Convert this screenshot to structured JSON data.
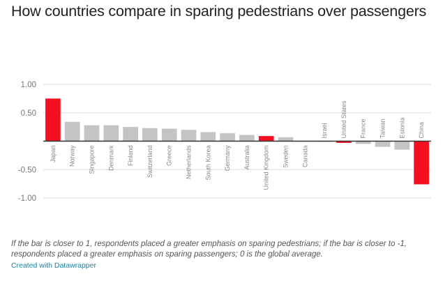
{
  "title": "How countries compare in sparing pedestrians over passengers",
  "notes": "If the bar is closer to 1, respondents placed a greater emphasis on sparing pedestrians; if the bar is closer to -1, respondents placed a greater emphasis on sparing passengers; 0 is the global average.",
  "credit": "Created with Datawrapper",
  "colors": {
    "highlight": "#f60f21",
    "default": "#c4c4c4",
    "grid": "#dddddd",
    "axis": "#333333",
    "credit": "#1d81a2"
  },
  "chart_data": {
    "type": "bar",
    "title": "How countries compare in sparing pedestrians over passengers",
    "xlabel": "",
    "ylabel": "",
    "ylim": [
      -1,
      1
    ],
    "yticks": [
      1.0,
      0.5,
      0,
      -0.5,
      -1.0
    ],
    "ytick_labels": [
      "1.00",
      "0.50",
      "",
      "-0.50",
      "-1.00"
    ],
    "grid": true,
    "categories": [
      "Japan",
      "Norway",
      "Singapore",
      "Denmark",
      "Finland",
      "Switzerland",
      "Greece",
      "Netherlands",
      "South Korea",
      "Germany",
      "Australia",
      "United Kingdom",
      "Sweden",
      "Canada",
      "Israel",
      "United States",
      "France",
      "Taiwan",
      "Estonia",
      "China"
    ],
    "values": [
      0.75,
      0.34,
      0.28,
      0.28,
      0.25,
      0.23,
      0.22,
      0.2,
      0.16,
      0.14,
      0.11,
      0.09,
      0.07,
      0.0,
      -0.01,
      -0.03,
      -0.05,
      -0.1,
      -0.15,
      -0.76
    ],
    "highlighted": [
      "Japan",
      "United Kingdom",
      "United States",
      "China"
    ]
  }
}
